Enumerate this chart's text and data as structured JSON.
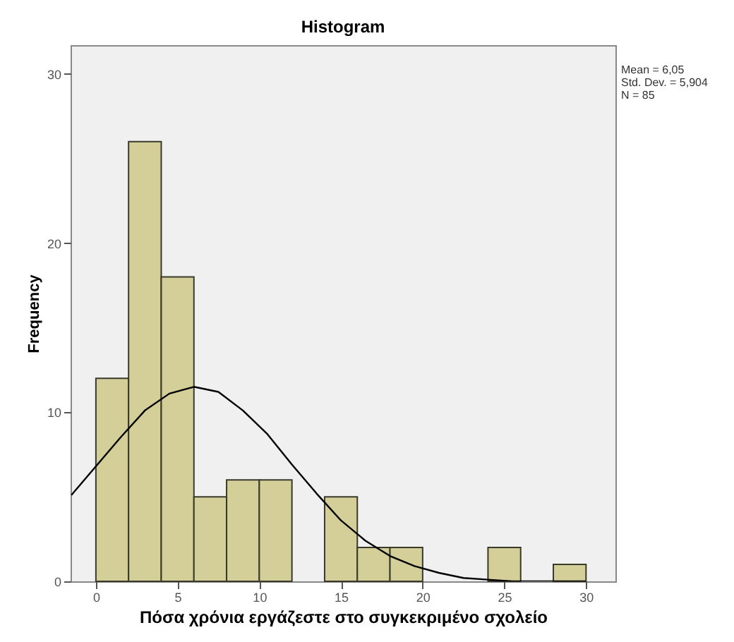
{
  "chart_data": {
    "type": "histogram",
    "title": "Histogram",
    "xlabel": "Πόσα χρόνια εργάζεστε στο συγκεκριμένο σχολείο",
    "ylabel": "Frequency",
    "annotations": [
      "Mean = 6,05",
      "Std. Dev. = 5,904",
      "N = 85"
    ],
    "bins": [
      0,
      2,
      4,
      6,
      8,
      10,
      12,
      14,
      16,
      18,
      20,
      22,
      24,
      26,
      28,
      30
    ],
    "series": [
      {
        "color": "#d4cf98",
        "values": [
          12,
          26,
          18,
          5,
          6,
          6,
          0,
          5,
          2,
          2,
          0,
          0,
          2,
          0,
          1
        ]
      },
      {
        "type": "line",
        "color": "#000000",
        "x": [
          -1.5,
          0,
          1.5,
          3,
          4.5,
          6,
          7.5,
          9,
          10.5,
          12,
          13.5,
          15,
          16.5,
          18,
          19.5,
          21,
          22.5,
          24,
          25.5,
          27,
          30
        ],
        "values": [
          5.1,
          6.8,
          8.5,
          10.1,
          11.1,
          11.5,
          11.2,
          10.1,
          8.7,
          6.9,
          5.2,
          3.6,
          2.4,
          1.5,
          0.9,
          0.5,
          0.2,
          0.1,
          0,
          0,
          0
        ]
      }
    ],
    "xlim": [
      -1.55,
      31.8
    ],
    "ylim": [
      0,
      31.7
    ],
    "xticks": [
      0,
      5,
      10,
      15,
      20,
      25,
      30
    ],
    "yticks": [
      0,
      10,
      20,
      30
    ],
    "grid": false
  }
}
